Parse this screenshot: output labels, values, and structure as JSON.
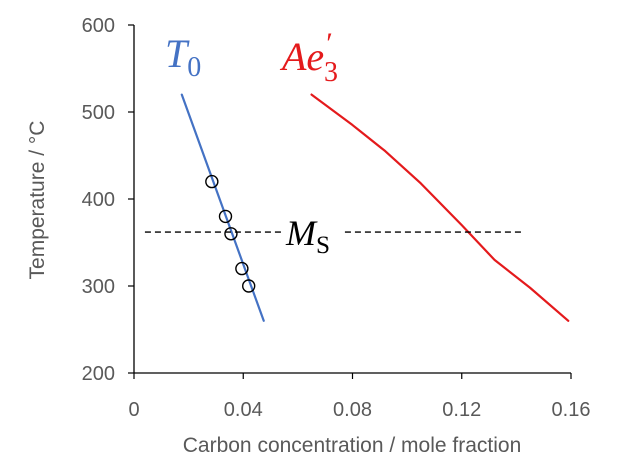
{
  "chart_data": {
    "type": "scatter",
    "xlabel": "Carbon concentration / mole fraction",
    "ylabel": "Temperature / °C",
    "xlim": [
      0,
      0.16
    ],
    "ylim": [
      200,
      600
    ],
    "x_ticks": [
      {
        "value": 0,
        "label": "0"
      },
      {
        "value": 0.04,
        "label": "0.04"
      },
      {
        "value": 0.08,
        "label": "0.08"
      },
      {
        "value": 0.12,
        "label": "0.12"
      },
      {
        "value": 0.16,
        "label": "0.16"
      }
    ],
    "y_ticks": [
      {
        "value": 200,
        "label": "200"
      },
      {
        "value": 300,
        "label": "300"
      },
      {
        "value": 400,
        "label": "400"
      },
      {
        "value": 500,
        "label": "500"
      },
      {
        "value": 600,
        "label": "600"
      }
    ],
    "grid": false,
    "series": [
      {
        "kind": "line",
        "color": "#4472c4",
        "label_main": "T",
        "label_sub": "0",
        "points": [
          [
            0.0175,
            520
          ],
          [
            0.0475,
            260
          ]
        ]
      },
      {
        "kind": "line",
        "color": "#e41a1c",
        "label_main": "Ae",
        "label_sub": "3",
        "label_sup": "′",
        "points": [
          [
            0.065,
            520
          ],
          [
            0.08,
            485
          ],
          [
            0.092,
            455
          ],
          [
            0.105,
            418
          ],
          [
            0.12,
            370
          ],
          [
            0.132,
            330
          ],
          [
            0.145,
            298
          ],
          [
            0.159,
            260
          ]
        ]
      },
      {
        "kind": "markers",
        "color": "#000000",
        "points": [
          [
            0.0285,
            420
          ],
          [
            0.0335,
            380
          ],
          [
            0.0355,
            360
          ],
          [
            0.0395,
            320
          ],
          [
            0.042,
            300
          ]
        ]
      }
    ],
    "reference_line": {
      "y": 362,
      "x_range": [
        0.004,
        0.143
      ],
      "style": "dashed",
      "color": "#000000",
      "label_main": "M",
      "label_sub": "S"
    }
  }
}
